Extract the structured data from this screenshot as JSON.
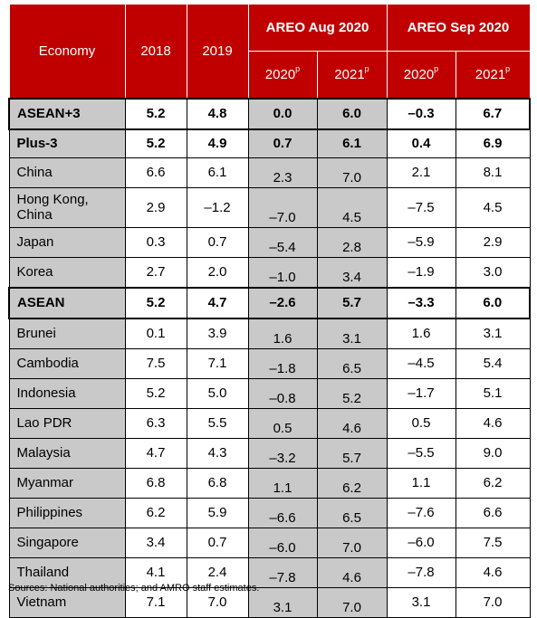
{
  "header": {
    "economy": "Economy",
    "y2018": "2018",
    "y2019": "2019",
    "areo_aug": "AREO Aug 2020",
    "areo_sep": "AREO Sep 2020",
    "aug_2020": "2020",
    "aug_2021": "2021",
    "sep_2020": "2020",
    "sep_2021": "2021",
    "proj_mark": "p"
  },
  "rows": [
    {
      "name": "ASEAN+3",
      "v2018": "5.2",
      "v2019": "4.8",
      "aug2020": "0.0",
      "aug2021": "6.0",
      "sep2020": "–0.3",
      "sep2021": "6.7"
    },
    {
      "name": "Plus-3",
      "v2018": "5.2",
      "v2019": "4.9",
      "aug2020": "0.7",
      "aug2021": "6.1",
      "sep2020": "0.4",
      "sep2021": "6.9"
    },
    {
      "name": "China",
      "v2018": "6.6",
      "v2019": "6.1",
      "aug2020": "2.3",
      "aug2021": "7.0",
      "sep2020": "2.1",
      "sep2021": "8.1"
    },
    {
      "name": "Hong Kong, China",
      "v2018": "2.9",
      "v2019": "–1.2",
      "aug2020": "–7.0",
      "aug2021": "4.5",
      "sep2020": "–7.5",
      "sep2021": "4.5"
    },
    {
      "name": "Japan",
      "v2018": "0.3",
      "v2019": "0.7",
      "aug2020": "–5.4",
      "aug2021": "2.8",
      "sep2020": "–5.9",
      "sep2021": "2.9"
    },
    {
      "name": "Korea",
      "v2018": "2.7",
      "v2019": "2.0",
      "aug2020": "–1.0",
      "aug2021": "3.4",
      "sep2020": "–1.9",
      "sep2021": "3.0"
    },
    {
      "name": "ASEAN",
      "v2018": "5.2",
      "v2019": "4.7",
      "aug2020": "–2.6",
      "aug2021": "5.7",
      "sep2020": "–3.3",
      "sep2021": "6.0"
    },
    {
      "name": "Brunei",
      "v2018": "0.1",
      "v2019": "3.9",
      "aug2020": "1.6",
      "aug2021": "3.1",
      "sep2020": "1.6",
      "sep2021": "3.1"
    },
    {
      "name": "Cambodia",
      "v2018": "7.5",
      "v2019": "7.1",
      "aug2020": "–1.8",
      "aug2021": "6.5",
      "sep2020": "–4.5",
      "sep2021": "5.4"
    },
    {
      "name": "Indonesia",
      "v2018": "5.2",
      "v2019": "5.0",
      "aug2020": "–0.8",
      "aug2021": "5.2",
      "sep2020": "–1.7",
      "sep2021": "5.1"
    },
    {
      "name": "Lao PDR",
      "v2018": "6.3",
      "v2019": "5.5",
      "aug2020": "0.5",
      "aug2021": "4.6",
      "sep2020": "0.5",
      "sep2021": "4.6"
    },
    {
      "name": "Malaysia",
      "v2018": "4.7",
      "v2019": "4.3",
      "aug2020": "–3.2",
      "aug2021": "5.7",
      "sep2020": "–5.5",
      "sep2021": "9.0"
    },
    {
      "name": "Myanmar",
      "v2018": "6.8",
      "v2019": "6.8",
      "aug2020": "1.1",
      "aug2021": "6.2",
      "sep2020": "1.1",
      "sep2021": "6.2"
    },
    {
      "name": "Philippines",
      "v2018": "6.2",
      "v2019": "5.9",
      "aug2020": "–6.6",
      "aug2021": "6.5",
      "sep2020": "–7.6",
      "sep2021": "6.6"
    },
    {
      "name": "Singapore",
      "v2018": "3.4",
      "v2019": "0.7",
      "aug2020": "–6.0",
      "aug2021": "7.0",
      "sep2020": "–6.0",
      "sep2021": "7.5"
    },
    {
      "name": "Thailand",
      "v2018": "4.1",
      "v2019": "2.4",
      "aug2020": "–7.8",
      "aug2021": "4.6",
      "sep2020": "–7.8",
      "sep2021": "4.6"
    },
    {
      "name": "Vietnam",
      "v2018": "7.1",
      "v2019": "7.0",
      "aug2020": "3.1",
      "aug2021": "7.0",
      "sep2020": "3.1",
      "sep2021": "7.0"
    }
  ],
  "source": "Sources: National authorities; and AMRO staff estimates."
}
